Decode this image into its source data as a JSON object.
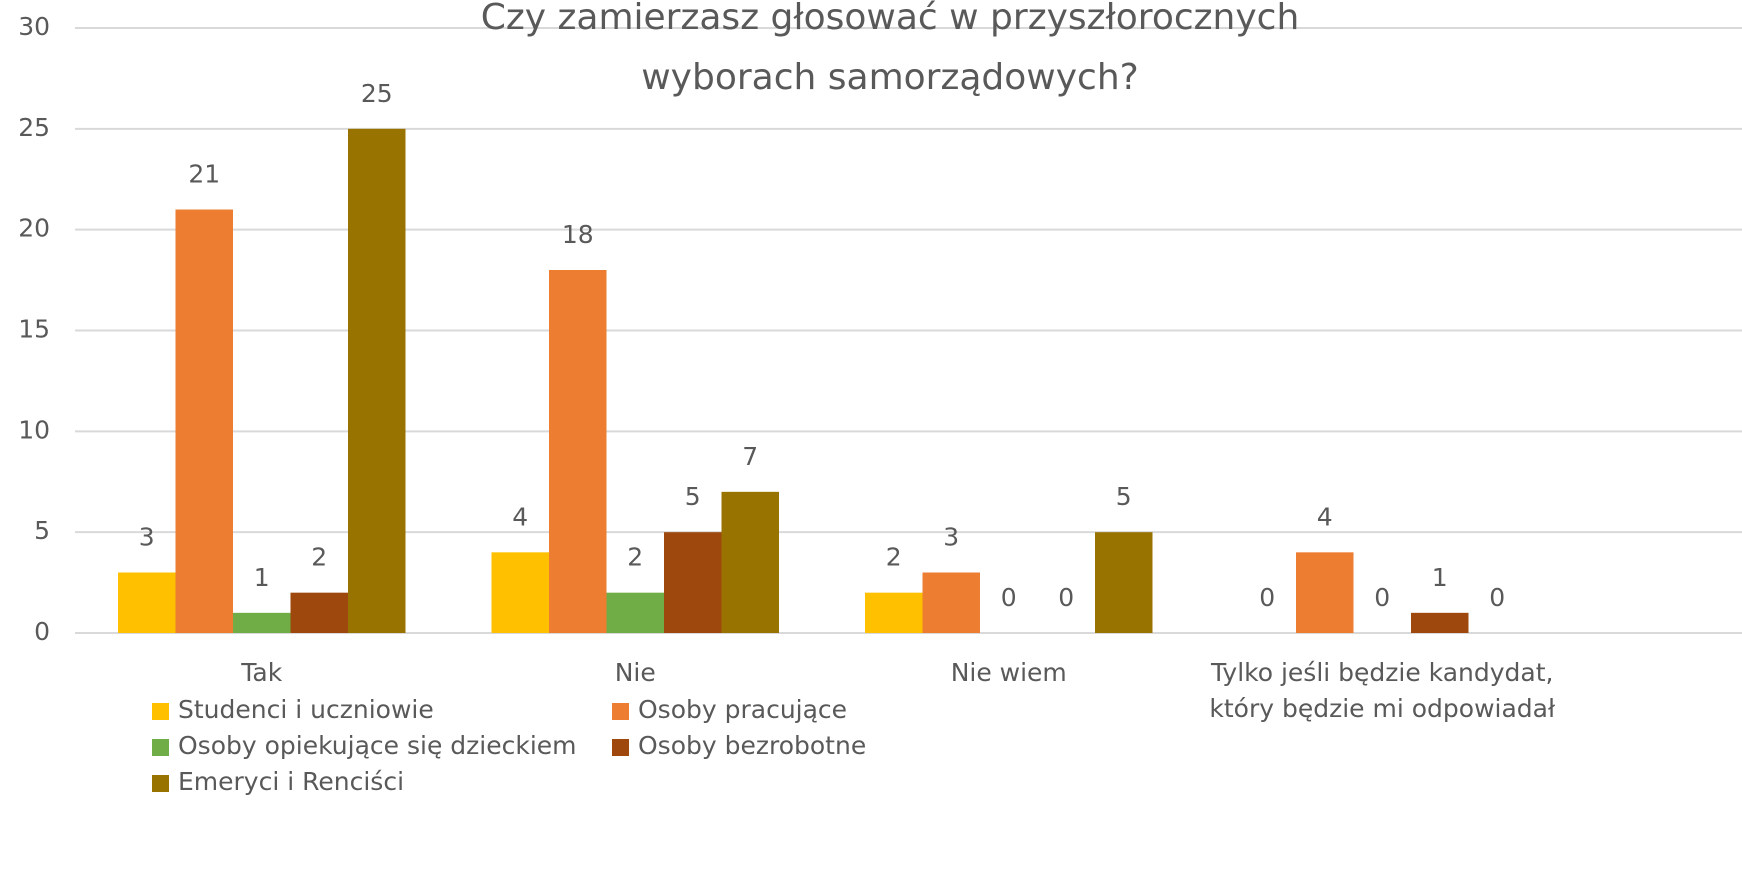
{
  "chart_data": {
    "type": "bar",
    "title": "Czy zamierzasz głosować w przyszłorocznych wyborach samorządowych?",
    "categories": [
      "Tak",
      "Nie",
      "Nie wiem",
      "Tylko jeśli będzie kandydat, który będzie mi odpowiadał"
    ],
    "series": [
      {
        "name": "Studenci i uczniowie",
        "color": "#ffc000",
        "values": [
          3,
          4,
          2,
          0
        ]
      },
      {
        "name": "Osoby pracujące",
        "color": "#ed7d31",
        "values": [
          21,
          18,
          3,
          4
        ]
      },
      {
        "name": "Osoby opiekujące się dzieckiem",
        "color": "#70ad47",
        "values": [
          1,
          2,
          0,
          0
        ]
      },
      {
        "name": "Osoby bezrobotne",
        "color": "#9e480e",
        "values": [
          2,
          5,
          0,
          1
        ]
      },
      {
        "name": "Emeryci i Renciści",
        "color": "#997300",
        "values": [
          25,
          7,
          5,
          0
        ]
      }
    ],
    "ylim": [
      0,
      30
    ],
    "yticks": [
      0,
      5,
      10,
      15,
      20,
      25,
      30
    ],
    "grid": true,
    "legend": "bottom"
  }
}
